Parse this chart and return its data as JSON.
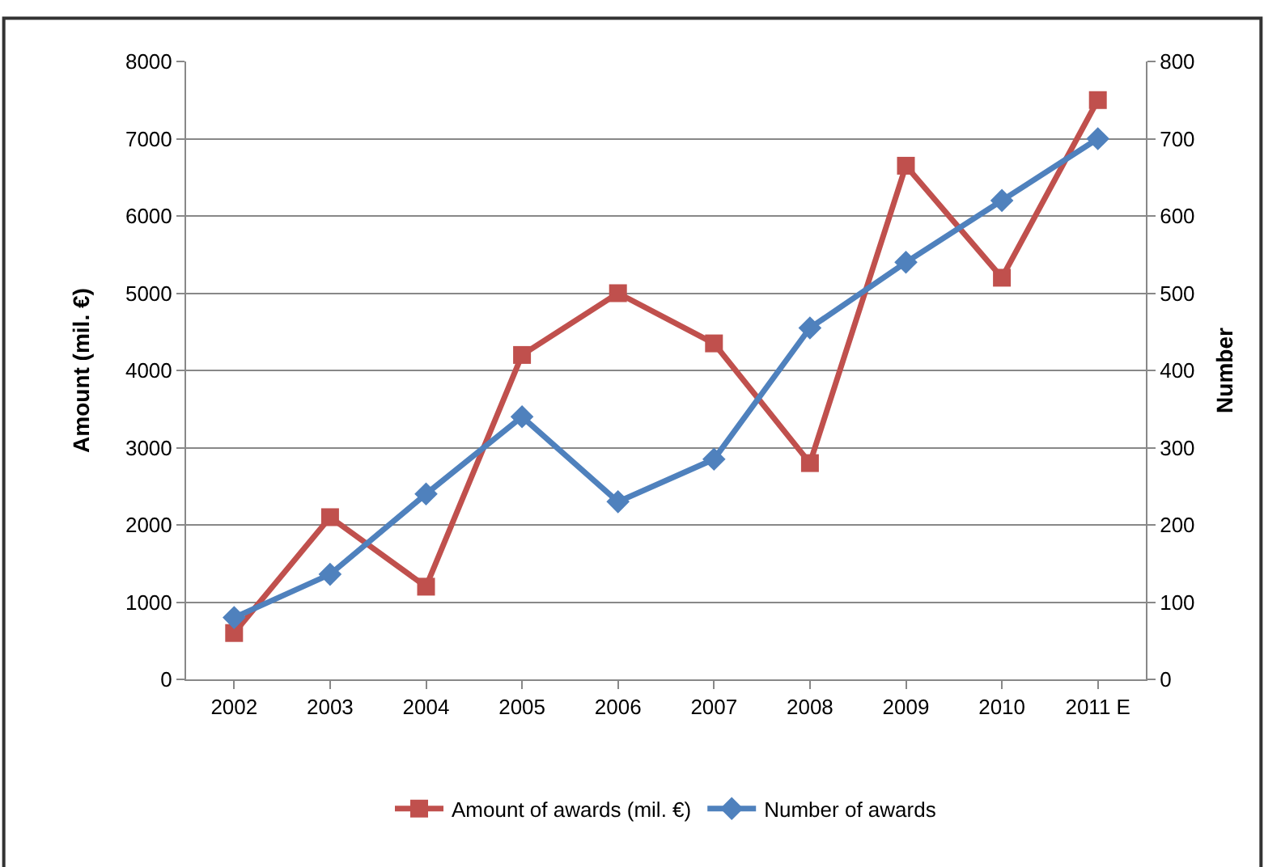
{
  "chart_data": {
    "type": "line",
    "categories": [
      "2002",
      "2003",
      "2004",
      "2005",
      "2006",
      "2007",
      "2008",
      "2009",
      "2010",
      "2011 E"
    ],
    "series": [
      {
        "name": "Amount of awards (mil. €)",
        "color": "#c0504d",
        "marker": "square",
        "values": [
          600,
          2100,
          1200,
          4200,
          5000,
          4350,
          2800,
          6650,
          5200,
          7500
        ]
      },
      {
        "name": "Number of awards",
        "color": "#4f81bd",
        "marker": "diamond",
        "axis": "y2",
        "values": [
          80,
          136,
          240,
          340,
          230,
          285,
          455,
          540,
          620,
          700
        ]
      }
    ],
    "ylabel": "Amount (mil. €)",
    "y2label": "Number",
    "ylim": [
      0,
      8000
    ],
    "yticks": [
      0,
      1000,
      2000,
      3000,
      4000,
      5000,
      6000,
      7000,
      8000
    ],
    "y2lim": [
      0,
      800
    ],
    "y2ticks": [
      0,
      100,
      200,
      300,
      400,
      500,
      600,
      700,
      800
    ],
    "grid": "y",
    "legend": "bottom",
    "line_style": "solid"
  }
}
